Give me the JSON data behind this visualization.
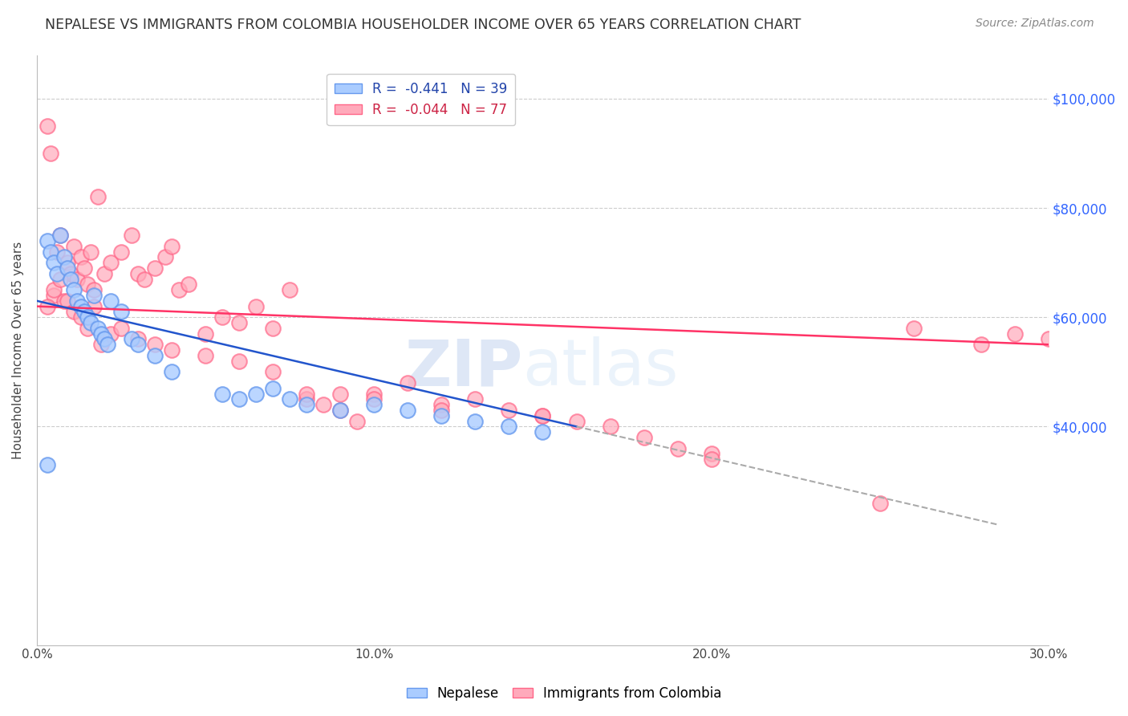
{
  "title": "NEPALESE VS IMMIGRANTS FROM COLOMBIA HOUSEHOLDER INCOME OVER 65 YEARS CORRELATION CHART",
  "source": "Source: ZipAtlas.com",
  "ylabel": "Householder Income Over 65 years",
  "ytick_labels": [
    "$40,000",
    "$60,000",
    "$80,000",
    "$100,000"
  ],
  "ytick_vals": [
    40000,
    60000,
    80000,
    100000
  ],
  "ylim": [
    0,
    108000
  ],
  "xlim": [
    0.0,
    0.3
  ],
  "watermark_zip": "ZIP",
  "watermark_atlas": "atlas",
  "bg_color": "#ffffff",
  "nepalese_color_face": "#aaccff",
  "nepalese_color_edge": "#6699ee",
  "colombia_color_face": "#ffaabb",
  "colombia_color_edge": "#ff6688",
  "nep_line_color": "#2255cc",
  "col_line_color": "#ff3366",
  "dash_line_color": "#aaaaaa",
  "ytick_color": "#3366ff",
  "nepalese_x": [
    0.003,
    0.004,
    0.005,
    0.006,
    0.007,
    0.008,
    0.009,
    0.01,
    0.011,
    0.012,
    0.013,
    0.014,
    0.015,
    0.016,
    0.017,
    0.018,
    0.019,
    0.02,
    0.021,
    0.022,
    0.025,
    0.028,
    0.03,
    0.035,
    0.04,
    0.055,
    0.06,
    0.065,
    0.07,
    0.075,
    0.08,
    0.09,
    0.1,
    0.11,
    0.12,
    0.13,
    0.14,
    0.15,
    0.003
  ],
  "nepalese_y": [
    74000,
    72000,
    70000,
    68000,
    75000,
    71000,
    69000,
    67000,
    65000,
    63000,
    62000,
    61000,
    60000,
    59000,
    64000,
    58000,
    57000,
    56000,
    55000,
    63000,
    61000,
    56000,
    55000,
    53000,
    50000,
    46000,
    45000,
    46000,
    47000,
    45000,
    44000,
    43000,
    44000,
    43000,
    42000,
    41000,
    40000,
    39000,
    33000
  ],
  "colombia_x": [
    0.003,
    0.004,
    0.005,
    0.006,
    0.007,
    0.008,
    0.009,
    0.01,
    0.011,
    0.012,
    0.013,
    0.014,
    0.015,
    0.016,
    0.017,
    0.018,
    0.02,
    0.022,
    0.025,
    0.028,
    0.03,
    0.032,
    0.035,
    0.038,
    0.04,
    0.042,
    0.045,
    0.05,
    0.055,
    0.06,
    0.065,
    0.07,
    0.075,
    0.08,
    0.085,
    0.09,
    0.095,
    0.1,
    0.11,
    0.12,
    0.13,
    0.14,
    0.15,
    0.16,
    0.17,
    0.18,
    0.19,
    0.2,
    0.003,
    0.005,
    0.007,
    0.009,
    0.011,
    0.013,
    0.015,
    0.017,
    0.019,
    0.022,
    0.025,
    0.03,
    0.035,
    0.04,
    0.05,
    0.06,
    0.07,
    0.08,
    0.09,
    0.1,
    0.12,
    0.15,
    0.2,
    0.25,
    0.26,
    0.28,
    0.29,
    0.3
  ],
  "colombia_y": [
    95000,
    90000,
    64000,
    72000,
    75000,
    63000,
    70000,
    68000,
    73000,
    67000,
    71000,
    69000,
    66000,
    72000,
    65000,
    82000,
    68000,
    70000,
    72000,
    75000,
    68000,
    67000,
    69000,
    71000,
    73000,
    65000,
    66000,
    57000,
    60000,
    59000,
    62000,
    58000,
    65000,
    45000,
    44000,
    43000,
    41000,
    46000,
    48000,
    44000,
    45000,
    43000,
    42000,
    41000,
    40000,
    38000,
    36000,
    35000,
    62000,
    65000,
    67000,
    63000,
    61000,
    60000,
    58000,
    62000,
    55000,
    57000,
    58000,
    56000,
    55000,
    54000,
    53000,
    52000,
    50000,
    46000,
    46000,
    45000,
    43000,
    42000,
    34000,
    26000,
    58000,
    55000,
    57000,
    56000
  ]
}
